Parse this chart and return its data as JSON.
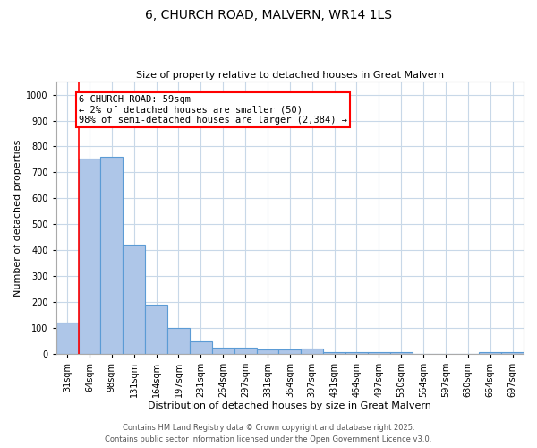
{
  "title": "6, CHURCH ROAD, MALVERN, WR14 1LS",
  "subtitle": "Size of property relative to detached houses in Great Malvern",
  "xlabel": "Distribution of detached houses by size in Great Malvern",
  "ylabel": "Number of detached properties",
  "categories": [
    "31sqm",
    "64sqm",
    "98sqm",
    "131sqm",
    "164sqm",
    "197sqm",
    "231sqm",
    "264sqm",
    "297sqm",
    "331sqm",
    "364sqm",
    "397sqm",
    "431sqm",
    "464sqm",
    "497sqm",
    "530sqm",
    "564sqm",
    "597sqm",
    "630sqm",
    "664sqm",
    "697sqm"
  ],
  "values": [
    120,
    755,
    760,
    420,
    190,
    100,
    48,
    23,
    23,
    18,
    18,
    20,
    5,
    5,
    5,
    5,
    0,
    0,
    0,
    8,
    5
  ],
  "bar_color": "#aec6e8",
  "bar_edge_color": "#5b9bd5",
  "annotation_text": "6 CHURCH ROAD: 59sqm\n← 2% of detached houses are smaller (50)\n98% of semi-detached houses are larger (2,384) →",
  "redline_x": 0.5,
  "ylim": [
    0,
    1050
  ],
  "yticks": [
    0,
    100,
    200,
    300,
    400,
    500,
    600,
    700,
    800,
    900,
    1000
  ],
  "footnote1": "Contains HM Land Registry data © Crown copyright and database right 2025.",
  "footnote2": "Contains public sector information licensed under the Open Government Licence v3.0.",
  "background_color": "#ffffff",
  "grid_color": "#c8d8e8",
  "title_fontsize": 10,
  "subtitle_fontsize": 8,
  "axis_label_fontsize": 8,
  "tick_fontsize": 7,
  "annotation_fontsize": 7.5,
  "footnote_fontsize": 6
}
